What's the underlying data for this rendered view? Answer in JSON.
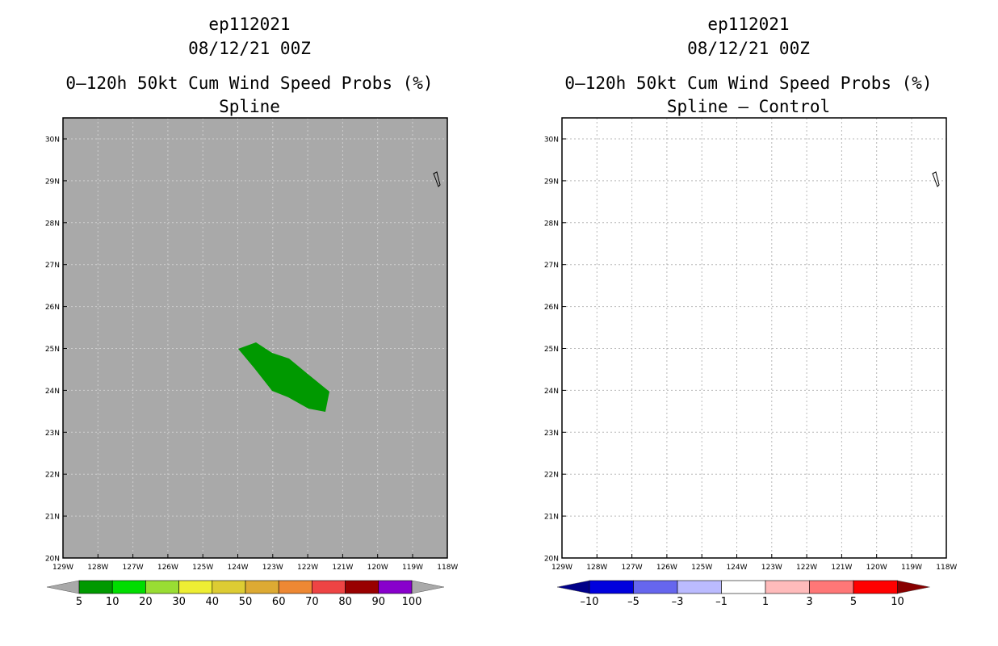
{
  "left_panel": {
    "storm_id": "ep112021",
    "date": "08/12/21 00Z",
    "title": "0–120h 50kt Cum Wind Speed Probs (%)",
    "subtitle": "Spline",
    "background_color": "#a9a9a9",
    "lat_labels": [
      "30N",
      "29N",
      "28N",
      "27N",
      "26N",
      "25N",
      "24N",
      "23N",
      "22N",
      "21N",
      "20N"
    ],
    "lon_labels": [
      "129W",
      "128W",
      "127W",
      "126W",
      "125W",
      "124W",
      "123W",
      "122W",
      "121W",
      "120W",
      "119W",
      "118W"
    ],
    "shaded_region": {
      "color": "#009900",
      "value_range": "5–10"
    },
    "colorbar": {
      "labels": [
        "5",
        "10",
        "20",
        "30",
        "40",
        "50",
        "60",
        "70",
        "80",
        "90",
        "100"
      ],
      "colors": [
        "#009900",
        "#00dd00",
        "#99dd33",
        "#eeee33",
        "#ddcc33",
        "#ddaa33",
        "#ee8833",
        "#ee4444",
        "#990000",
        "#8800cc"
      ],
      "under_color": "#a9a9a9",
      "over_color": "#a9a9a9"
    }
  },
  "right_panel": {
    "storm_id": "ep112021",
    "date": "08/12/21 00Z",
    "title": "0–120h 50kt Cum Wind Speed Probs (%)",
    "subtitle": "Spline – Control",
    "background_color": "#ffffff",
    "lat_labels": [
      "30N",
      "29N",
      "28N",
      "27N",
      "26N",
      "25N",
      "24N",
      "23N",
      "22N",
      "21N",
      "20N"
    ],
    "lon_labels": [
      "129W",
      "128W",
      "127W",
      "126W",
      "125W",
      "124W",
      "123W",
      "122W",
      "121W",
      "120W",
      "119W",
      "118W"
    ],
    "colorbar": {
      "labels": [
        "–10",
        "–5",
        "–3",
        "–1",
        "1",
        "3",
        "5",
        "10"
      ],
      "colors": [
        "#0000dd",
        "#6666ee",
        "#bbbbff",
        "#ffffff",
        "#ffbbbb",
        "#ff7777",
        "#ff0000"
      ],
      "under_color": "#000088",
      "over_color": "#880000"
    }
  }
}
